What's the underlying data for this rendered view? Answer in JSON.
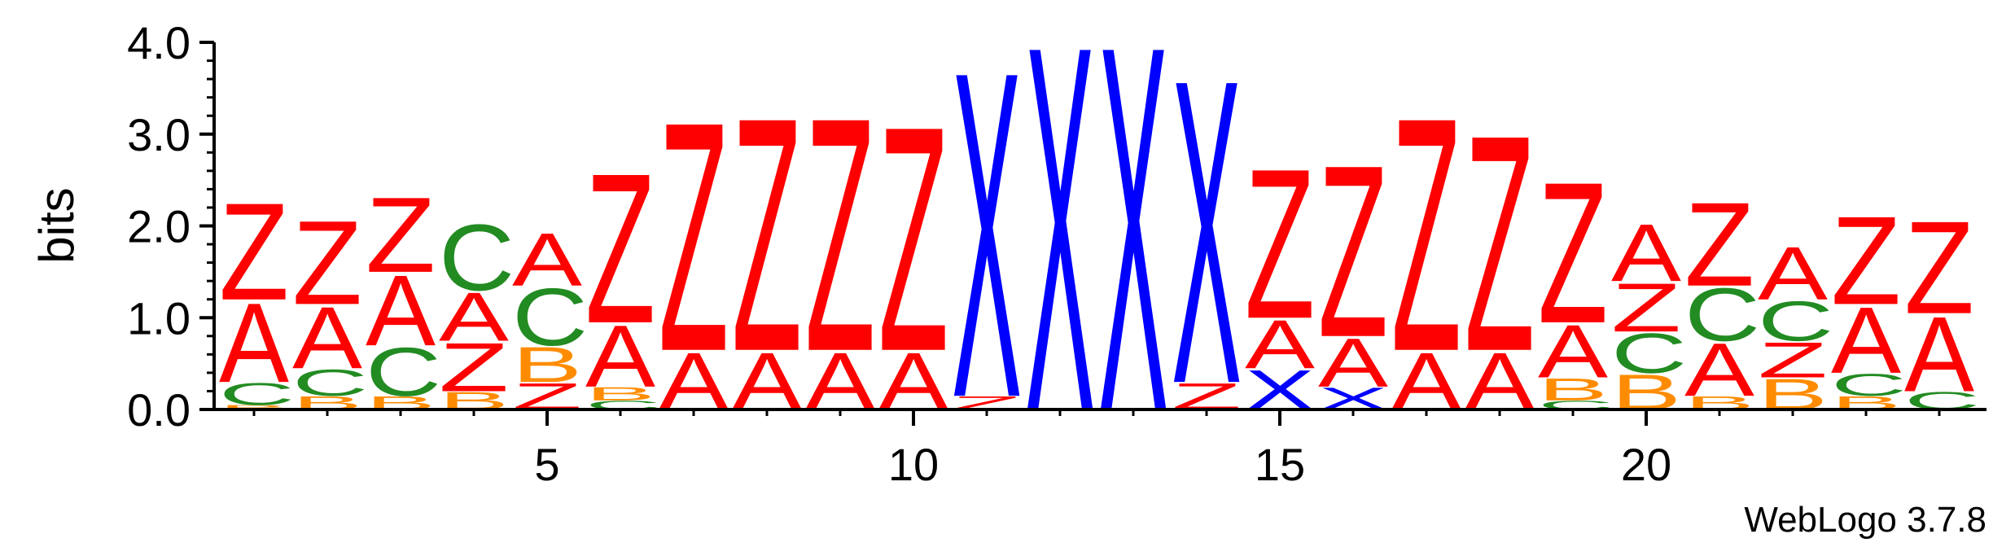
{
  "chart_data": {
    "type": "sequence-logo",
    "ylabel": "bits",
    "xlabel": "",
    "ylim": [
      0,
      4.0
    ],
    "y_ticks": [
      "0.0",
      "1.0",
      "2.0",
      "3.0",
      "4.0"
    ],
    "x_ticks": [
      "5",
      "10",
      "15",
      "20"
    ],
    "x_tick_positions": [
      5,
      10,
      15,
      20
    ],
    "positions": 24,
    "colors": {
      "Z": "#ff0000",
      "A": "#ff0000",
      "X": "#0000ff",
      "C": "#228b22",
      "B": "#ff8c00"
    },
    "columns": [
      [
        [
          "B",
          0.05
        ],
        [
          "C",
          0.25
        ],
        [
          "A",
          0.9
        ],
        [
          "Z",
          1.1
        ]
      ],
      [
        [
          "B",
          0.15
        ],
        [
          "C",
          0.3
        ],
        [
          "A",
          0.7
        ],
        [
          "Z",
          0.95
        ]
      ],
      [
        [
          "B",
          0.15
        ],
        [
          "C",
          0.55
        ],
        [
          "A",
          0.8
        ],
        [
          "Z",
          0.85
        ]
      ],
      [
        [
          "B",
          0.2
        ],
        [
          "Z",
          0.55
        ],
        [
          "A",
          0.55
        ],
        [
          "C",
          0.75
        ]
      ],
      [
        [
          "Z",
          0.3
        ],
        [
          "B",
          0.4
        ],
        [
          "C",
          0.65
        ],
        [
          "A",
          0.6
        ]
      ],
      [
        [
          "C",
          0.1
        ],
        [
          "B",
          0.15
        ],
        [
          "A",
          0.7
        ],
        [
          "Z",
          1.7
        ]
      ],
      [
        [
          "A",
          0.65
        ],
        [
          "Z",
          2.6
        ]
      ],
      [
        [
          "A",
          0.65
        ],
        [
          "Z",
          2.65
        ]
      ],
      [
        [
          "A",
          0.65
        ],
        [
          "Z",
          2.65
        ]
      ],
      [
        [
          "A",
          0.65
        ],
        [
          "Z",
          2.55
        ]
      ],
      [
        [
          "Z",
          0.15
        ],
        [
          "X",
          3.7
        ]
      ],
      [
        [
          "X",
          4.15
        ]
      ],
      [
        [
          "X",
          4.15
        ]
      ],
      [
        [
          "Z",
          0.3
        ],
        [
          "X",
          3.45
        ]
      ],
      [
        [
          "X",
          0.45
        ],
        [
          "A",
          0.55
        ],
        [
          "Z",
          1.7
        ]
      ],
      [
        [
          "X",
          0.25
        ],
        [
          "A",
          0.55
        ],
        [
          "Z",
          1.95
        ]
      ],
      [
        [
          "A",
          0.65
        ],
        [
          "Z",
          2.65
        ]
      ],
      [
        [
          "A",
          0.65
        ],
        [
          "Z",
          2.45
        ]
      ],
      [
        [
          "C",
          0.1
        ],
        [
          "B",
          0.25
        ],
        [
          "A",
          0.6
        ],
        [
          "Z",
          1.6
        ]
      ],
      [
        [
          "B",
          0.4
        ],
        [
          "C",
          0.45
        ],
        [
          "Z",
          0.55
        ],
        [
          "A",
          0.65
        ]
      ],
      [
        [
          "B",
          0.15
        ],
        [
          "A",
          0.6
        ],
        [
          "C",
          0.6
        ],
        [
          "Z",
          0.95
        ]
      ],
      [
        [
          "B",
          0.35
        ],
        [
          "Z",
          0.4
        ],
        [
          "C",
          0.45
        ],
        [
          "A",
          0.6
        ]
      ],
      [
        [
          "B",
          0.15
        ],
        [
          "C",
          0.25
        ],
        [
          "A",
          0.75
        ],
        [
          "Z",
          1.0
        ]
      ],
      [
        [
          "C",
          0.2
        ],
        [
          "A",
          0.85
        ],
        [
          "Z",
          1.05
        ]
      ]
    ]
  },
  "footer": {
    "version_label": "WebLogo 3.7.8"
  }
}
